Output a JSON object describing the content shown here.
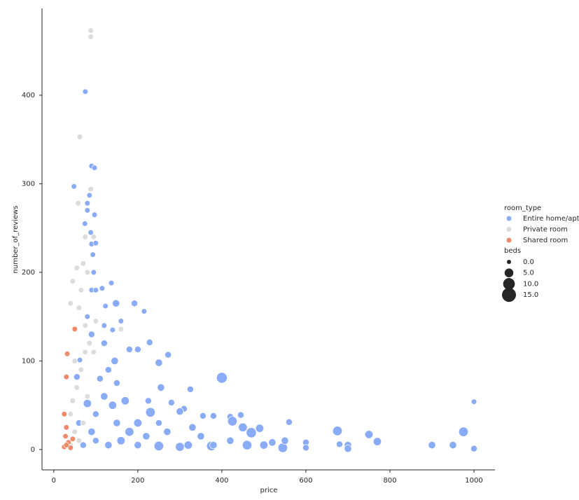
{
  "chart_data": {
    "type": "scatter",
    "x_label": "price",
    "y_label": "number_of_reviews",
    "xlim": [
      -28,
      1050
    ],
    "ylim": [
      -23,
      498
    ],
    "xticks": [
      0,
      200,
      400,
      600,
      800,
      1000
    ],
    "yticks": [
      0,
      100,
      200,
      300,
      400
    ],
    "legend_title": "room_type",
    "size_legend_title": "beds",
    "size_ticks": [
      {
        "value": 0,
        "label": "0.0"
      },
      {
        "value": 5,
        "label": "5.0"
      },
      {
        "value": 10,
        "label": "10.0"
      },
      {
        "value": 15,
        "label": "15.0"
      }
    ],
    "size_range": [
      0,
      15
    ],
    "series": [
      {
        "name": "Entire home/apt",
        "color": "#8aabf5",
        "x": [
          75,
          90,
          97,
          48,
          85,
          80,
          80,
          97,
          74,
          88,
          90,
          100,
          93,
          95,
          137,
          115,
          90,
          100,
          148,
          192,
          215,
          123,
          160,
          228,
          272,
          250,
          180,
          200,
          145,
          120,
          80,
          90,
          400,
          325,
          255,
          225,
          280,
          310,
          300,
          355,
          380,
          420,
          445,
          560,
          450,
          490,
          425,
          675,
          750,
          975,
          1000,
          770,
          900,
          950,
          1000,
          700,
          700,
          680,
          600,
          600,
          545,
          550,
          470,
          460,
          500,
          420,
          375,
          350,
          320,
          300,
          250,
          230,
          200,
          180,
          160,
          140,
          120,
          100,
          90,
          80,
          100,
          130,
          150,
          170,
          200,
          220,
          270,
          330,
          380,
          520,
          250,
          110,
          130,
          150,
          60,
          70,
          55,
          62,
          120,
          140
        ],
        "values": [
          404,
          320,
          318,
          297,
          287,
          278,
          270,
          265,
          255,
          245,
          232,
          233,
          220,
          200,
          188,
          182,
          180,
          180,
          165,
          165,
          156,
          162,
          145,
          121,
          107,
          98,
          113,
          113,
          100,
          120,
          150,
          130,
          81,
          68,
          70,
          55,
          53,
          46,
          43,
          38,
          38,
          37,
          39,
          31,
          25,
          24,
          32,
          21,
          17,
          20,
          54,
          9,
          5,
          5,
          1,
          5,
          1,
          6,
          8,
          2,
          2,
          10,
          19,
          5,
          5,
          10,
          4,
          15,
          5,
          3,
          4,
          42,
          30,
          20,
          10,
          50,
          60,
          40,
          20,
          52,
          10,
          5,
          30,
          55,
          5,
          15,
          20,
          25,
          5,
          8,
          30,
          80,
          90,
          75,
          30,
          5,
          82,
          101,
          140,
          135
        ],
        "sizes": [
          1,
          1,
          1,
          1,
          1,
          1,
          1,
          1,
          1,
          1,
          1,
          1,
          1,
          1,
          1,
          1,
          1,
          1,
          3,
          2,
          1,
          1,
          1,
          2,
          2,
          3,
          2,
          2,
          3,
          2,
          1,
          2,
          8,
          2,
          3,
          2,
          2,
          2,
          3,
          2,
          2,
          2,
          2,
          2,
          5,
          4,
          6,
          6,
          4,
          6,
          1,
          4,
          3,
          3,
          2,
          3,
          3,
          2,
          2,
          2,
          6,
          3,
          7,
          6,
          4,
          3,
          6,
          3,
          4,
          5,
          6,
          6,
          4,
          5,
          4,
          4,
          3,
          2,
          3,
          4,
          2,
          3,
          3,
          4,
          3,
          3,
          3,
          3,
          3,
          3,
          2,
          2,
          2,
          2,
          2,
          2,
          2,
          1,
          1,
          1
        ]
      },
      {
        "name": "Private room",
        "color": "#dcdcdc",
        "x": [
          88,
          88,
          62,
          88,
          58,
          95,
          75,
          70,
          55,
          45,
          80,
          65,
          40,
          60,
          75,
          85,
          50,
          65,
          55,
          45,
          40,
          70,
          50,
          60,
          40,
          80,
          95,
          75,
          160,
          100
        ],
        "values": [
          473,
          466,
          353,
          294,
          278,
          240,
          240,
          210,
          205,
          190,
          200,
          180,
          165,
          160,
          140,
          120,
          100,
          90,
          70,
          55,
          40,
          30,
          20,
          10,
          5,
          60,
          110,
          110,
          136,
          145
        ],
        "sizes": [
          1,
          1,
          1,
          1,
          1,
          1,
          1,
          1,
          1,
          1,
          1,
          1,
          1,
          1,
          1,
          1,
          1,
          1,
          1,
          1,
          1,
          1,
          1,
          1,
          1,
          1,
          1,
          1,
          1,
          1
        ]
      },
      {
        "name": "Shared room",
        "color": "#ee8b6b",
        "x": [
          50,
          32,
          30,
          25,
          30,
          28,
          35,
          25,
          40,
          30,
          45
        ],
        "values": [
          136,
          108,
          82,
          40,
          25,
          15,
          8,
          3,
          2,
          5,
          12
        ],
        "sizes": [
          1,
          1,
          1,
          1,
          1,
          1,
          1,
          1,
          1,
          1,
          1
        ]
      }
    ]
  }
}
